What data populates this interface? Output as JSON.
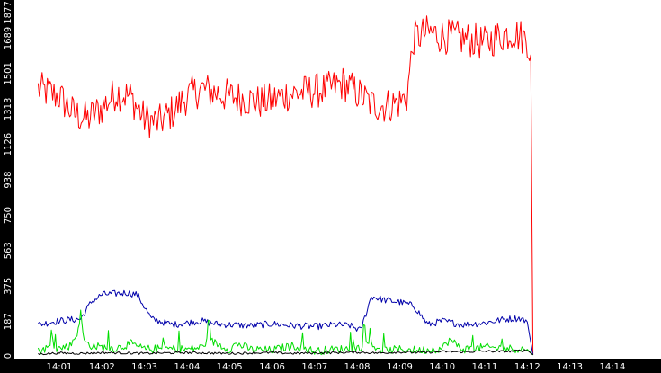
{
  "chart_data": {
    "type": "line",
    "title": "",
    "xlabel": "",
    "ylabel": "",
    "x_ticks": [
      "14:01",
      "14:02",
      "14:03",
      "14:04",
      "14:05",
      "14:06",
      "14:07",
      "14:08",
      "14:09",
      "14:10",
      "14:11",
      "14:12",
      "14:13",
      "14:14"
    ],
    "y_ticks": [
      0,
      187,
      375,
      563,
      750,
      938,
      1126,
      1313,
      1501,
      1689,
      1877
    ],
    "ylim": [
      0,
      1877
    ],
    "grid": false,
    "legend": "none",
    "background": "#ffffff",
    "axis_band_color": "#000000",
    "tick_label_color": "#ffffff",
    "series": [
      {
        "color": "#ff0000",
        "x": [
          "14:00:30",
          "14:01:00",
          "14:01:20",
          "14:01:40",
          "14:02:00",
          "14:02:20",
          "14:02:40",
          "14:03:00",
          "14:03:20",
          "14:03:40",
          "14:04:00",
          "14:04:20",
          "14:04:40",
          "14:05:00",
          "14:05:20",
          "14:05:40",
          "14:06:00",
          "14:06:20",
          "14:06:40",
          "14:07:00",
          "14:07:20",
          "14:07:40",
          "14:08:00",
          "14:08:20",
          "14:08:40",
          "14:09:00",
          "14:09:10",
          "14:09:20",
          "14:09:40",
          "14:10:00",
          "14:10:20",
          "14:10:40",
          "14:11:00",
          "14:11:20",
          "14:11:40",
          "14:12:00",
          "14:12:05",
          "14:12:08"
        ],
        "values": [
          1420,
          1380,
          1290,
          1260,
          1320,
          1400,
          1380,
          1260,
          1240,
          1300,
          1380,
          1420,
          1400,
          1380,
          1370,
          1350,
          1360,
          1390,
          1400,
          1410,
          1420,
          1450,
          1400,
          1340,
          1330,
          1350,
          1380,
          1690,
          1720,
          1700,
          1690,
          1680,
          1660,
          1700,
          1720,
          1680,
          1600,
          10
        ]
      },
      {
        "color": "#0000aa",
        "x": [
          "14:00:30",
          "14:00:50",
          "14:01:10",
          "14:01:30",
          "14:01:45",
          "14:02:00",
          "14:02:20",
          "14:02:35",
          "14:02:50",
          "14:03:10",
          "14:03:40",
          "14:04:00",
          "14:04:20",
          "14:04:40",
          "14:05:00",
          "14:05:30",
          "14:06:00",
          "14:06:30",
          "14:07:00",
          "14:07:30",
          "14:07:50",
          "14:08:05",
          "14:08:20",
          "14:08:40",
          "14:09:00",
          "14:09:20",
          "14:09:40",
          "14:10:00",
          "14:10:30",
          "14:11:00",
          "14:11:30",
          "14:11:50",
          "14:12:00",
          "14:12:08"
        ],
        "values": [
          170,
          185,
          195,
          200,
          290,
          330,
          335,
          340,
          330,
          200,
          170,
          180,
          190,
          175,
          170,
          165,
          175,
          165,
          160,
          170,
          165,
          140,
          320,
          300,
          290,
          270,
          170,
          190,
          170,
          180,
          200,
          205,
          185,
          10
        ]
      },
      {
        "color": "#00dd00",
        "x": [
          "14:00:30",
          "14:00:45",
          "14:01:00",
          "14:01:15",
          "14:01:25",
          "14:01:30",
          "14:01:35",
          "14:01:45",
          "14:02:00",
          "14:02:20",
          "14:02:40",
          "14:03:00",
          "14:03:30",
          "14:04:00",
          "14:04:20",
          "14:04:30",
          "14:05:00",
          "14:05:10",
          "14:05:30",
          "14:06:00",
          "14:06:30",
          "14:07:00",
          "14:07:30",
          "14:08:00",
          "14:08:20",
          "14:08:30",
          "14:09:00",
          "14:09:30",
          "14:10:00",
          "14:10:10",
          "14:10:30",
          "14:11:00",
          "14:11:30",
          "14:12:00",
          "14:12:08"
        ],
        "values": [
          30,
          50,
          45,
          60,
          120,
          230,
          80,
          60,
          50,
          45,
          70,
          40,
          45,
          40,
          50,
          90,
          40,
          70,
          40,
          35,
          60,
          30,
          40,
          45,
          80,
          30,
          40,
          35,
          45,
          90,
          40,
          50,
          45,
          40,
          10
        ]
      },
      {
        "color": "#000000",
        "x": [
          "14:00:30",
          "14:01:00",
          "14:01:30",
          "14:02:00",
          "14:02:30",
          "14:03:00",
          "14:03:30",
          "14:04:00",
          "14:04:30",
          "14:05:00",
          "14:05:30",
          "14:06:00",
          "14:06:30",
          "14:07:00",
          "14:07:30",
          "14:08:00",
          "14:08:30",
          "14:09:00",
          "14:09:30",
          "14:10:00",
          "14:10:30",
          "14:11:00",
          "14:11:30",
          "14:12:00",
          "14:12:08"
        ],
        "values": [
          15,
          20,
          18,
          22,
          20,
          18,
          20,
          22,
          20,
          18,
          20,
          22,
          18,
          20,
          22,
          24,
          20,
          25,
          22,
          28,
          26,
          30,
          28,
          35,
          10
        ]
      }
    ]
  }
}
